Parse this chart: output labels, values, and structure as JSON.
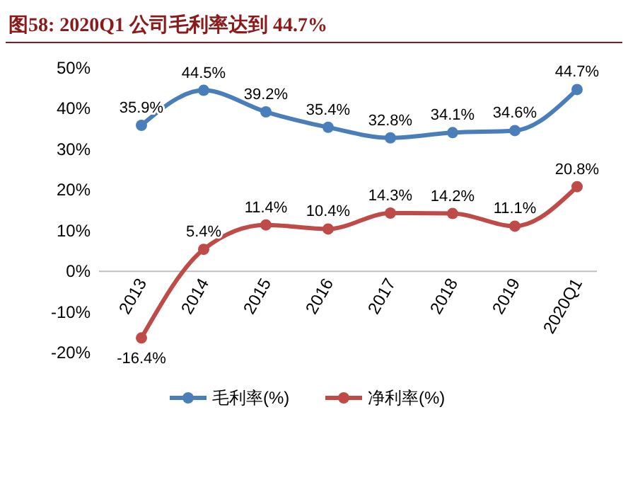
{
  "chart_data": {
    "type": "line",
    "title": "图58:    2020Q1 公司毛利率达到 44.7%",
    "categories": [
      "2013",
      "2014",
      "2015",
      "2016",
      "2017",
      "2018",
      "2019",
      "2020Q1"
    ],
    "series": [
      {
        "name": "毛利率(%)",
        "color": "#4a7ebb",
        "values": [
          35.9,
          44.5,
          39.2,
          35.4,
          32.8,
          34.1,
          34.6,
          44.7
        ],
        "value_labels": [
          "35.9%",
          "44.5%",
          "39.2%",
          "35.4%",
          "32.8%",
          "34.1%",
          "34.6%",
          "44.7%"
        ]
      },
      {
        "name": "净利率(%)",
        "color": "#be4b48",
        "values": [
          -16.4,
          5.4,
          11.4,
          10.4,
          14.3,
          14.2,
          11.1,
          20.8
        ],
        "value_labels": [
          "-16.4%",
          "5.4%",
          "11.4%",
          "10.4%",
          "14.3%",
          "14.2%",
          "11.1%",
          "20.8%"
        ]
      }
    ],
    "ylim": [
      -20,
      50
    ],
    "yticks": [
      {
        "value": -20,
        "label": "-20%"
      },
      {
        "value": -10,
        "label": "-10%"
      },
      {
        "value": 0,
        "label": "0%"
      },
      {
        "value": 10,
        "label": "10%"
      },
      {
        "value": 20,
        "label": "20%"
      },
      {
        "value": 30,
        "label": "30%"
      },
      {
        "value": 40,
        "label": "40%"
      },
      {
        "value": 50,
        "label": "50%"
      }
    ],
    "legend": "bottom",
    "marker": "circle",
    "line_style": "solid",
    "grid": false
  }
}
